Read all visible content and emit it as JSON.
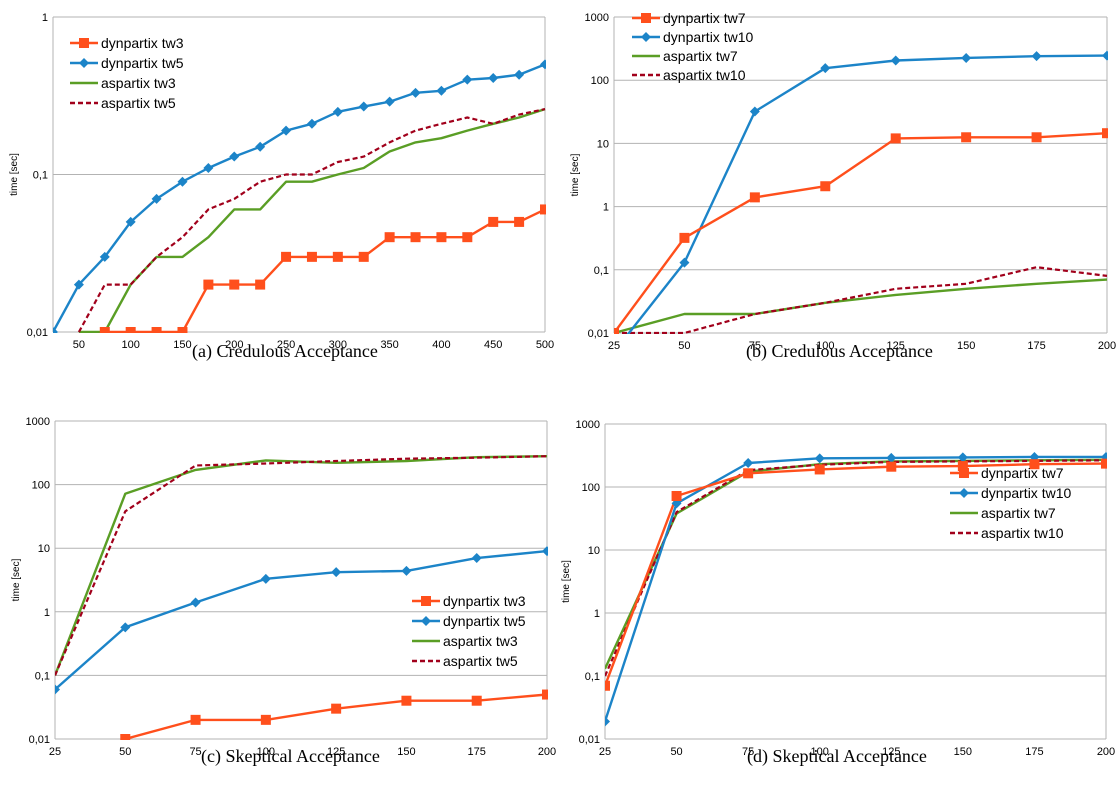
{
  "chart_data": [
    {
      "type": "line",
      "caption": "(a) Credulous Acceptance",
      "ylabel": "time [sec]",
      "yscale": "log",
      "ylim": [
        0.01,
        1
      ],
      "yticks": [
        0.01,
        0.1,
        1
      ],
      "ytick_labels": [
        "0,01",
        "0,1",
        "1"
      ],
      "xlim": [
        25,
        500
      ],
      "xticks": [
        50,
        100,
        150,
        200,
        250,
        300,
        350,
        400,
        450,
        500
      ],
      "xtick_labels": [
        "50",
        "100",
        "150",
        "200",
        "250",
        "300",
        "350",
        "400",
        "450",
        "500"
      ],
      "grid": "horizontal",
      "legend_position": "top-left",
      "series": [
        {
          "name": "dynpartix tw3",
          "marker": "square",
          "style": "solid",
          "color": "#ff4f1c",
          "x": [
            75,
            100,
            125,
            150,
            175,
            200,
            225,
            250,
            275,
            300,
            325,
            350,
            375,
            400,
            425,
            450,
            475,
            500
          ],
          "y": [
            0.01,
            0.01,
            0.01,
            0.01,
            0.02,
            0.02,
            0.02,
            0.03,
            0.03,
            0.03,
            0.03,
            0.04,
            0.04,
            0.04,
            0.04,
            0.05,
            0.05,
            0.06
          ]
        },
        {
          "name": "dynpartix tw5",
          "marker": "diamond",
          "style": "solid",
          "color": "#1c84c8",
          "x": [
            25,
            50,
            75,
            100,
            125,
            150,
            175,
            200,
            225,
            250,
            275,
            300,
            325,
            350,
            375,
            400,
            425,
            450,
            475,
            500
          ],
          "y": [
            0.01,
            0.02,
            0.03,
            0.05,
            0.07,
            0.09,
            0.11,
            0.13,
            0.15,
            0.19,
            0.21,
            0.25,
            0.27,
            0.29,
            0.33,
            0.34,
            0.4,
            0.41,
            0.43,
            0.5
          ]
        },
        {
          "name": "aspartix tw3",
          "marker": "none",
          "style": "solid",
          "color": "#5a9e25",
          "x": [
            50,
            75,
            100,
            125,
            150,
            175,
            200,
            225,
            250,
            275,
            300,
            325,
            350,
            375,
            400,
            425,
            450,
            475,
            500
          ],
          "y": [
            0.01,
            0.01,
            0.02,
            0.03,
            0.03,
            0.04,
            0.06,
            0.06,
            0.09,
            0.09,
            0.1,
            0.11,
            0.14,
            0.16,
            0.17,
            0.19,
            0.21,
            0.23,
            0.26
          ]
        },
        {
          "name": "aspartix tw5",
          "marker": "none",
          "style": "dashed",
          "color": "#a1001b",
          "x": [
            50,
            75,
            100,
            125,
            150,
            175,
            200,
            225,
            250,
            275,
            300,
            325,
            350,
            375,
            400,
            425,
            450,
            475,
            500
          ],
          "y": [
            0.01,
            0.02,
            0.02,
            0.03,
            0.04,
            0.06,
            0.07,
            0.09,
            0.1,
            0.1,
            0.12,
            0.13,
            0.16,
            0.19,
            0.21,
            0.23,
            0.21,
            0.24,
            0.26
          ]
        }
      ]
    },
    {
      "type": "line",
      "caption": "(b) Credulous Acceptance",
      "ylabel": "time [sec]",
      "yscale": "log",
      "ylim": [
        0.01,
        1000
      ],
      "yticks": [
        0.01,
        0.1,
        1,
        10,
        100,
        1000
      ],
      "ytick_labels": [
        "0,01",
        "0,1",
        "1",
        "10",
        "100",
        "1000"
      ],
      "xlim": [
        25,
        200
      ],
      "xticks": [
        25,
        50,
        75,
        100,
        125,
        150,
        175,
        200
      ],
      "xtick_labels": [
        "25",
        "50",
        "75",
        "100",
        "125",
        "150",
        "175",
        "200"
      ],
      "grid": "horizontal",
      "legend_position": "top-left",
      "series": [
        {
          "name": "dynpartix tw7",
          "marker": "square",
          "style": "solid",
          "color": "#ff4f1c",
          "x": [
            25,
            50,
            75,
            100,
            125,
            150,
            175,
            200
          ],
          "y": [
            0.01,
            0.32,
            1.4,
            2.1,
            12,
            12.5,
            12.5,
            14.5
          ]
        },
        {
          "name": "dynpartix tw10",
          "marker": "diamond",
          "style": "solid",
          "color": "#1c84c8",
          "x": [
            25,
            50,
            75,
            100,
            125,
            150,
            175,
            200
          ],
          "y": [
            0.005,
            0.13,
            32,
            155,
            205,
            225,
            240,
            245
          ]
        },
        {
          "name": "aspartix tw7",
          "marker": "none",
          "style": "solid",
          "color": "#5a9e25",
          "x": [
            25,
            50,
            75,
            100,
            125,
            150,
            175,
            200
          ],
          "y": [
            0.01,
            0.02,
            0.02,
            0.03,
            0.04,
            0.05,
            0.06,
            0.07
          ]
        },
        {
          "name": "aspartix tw10",
          "marker": "none",
          "style": "dashed",
          "color": "#a1001b",
          "x": [
            25,
            50,
            75,
            100,
            125,
            150,
            175,
            200
          ],
          "y": [
            0.01,
            0.01,
            0.02,
            0.03,
            0.05,
            0.06,
            0.11,
            0.08
          ]
        }
      ]
    },
    {
      "type": "line",
      "caption": "(c) Skeptical Acceptance",
      "ylabel": "time [sec]",
      "yscale": "log",
      "ylim": [
        0.01,
        1000
      ],
      "yticks": [
        0.01,
        0.1,
        1,
        10,
        100,
        1000
      ],
      "ytick_labels": [
        "0,01",
        "0,1",
        "1",
        "10",
        "100",
        "1000"
      ],
      "xlim": [
        25,
        200
      ],
      "xticks": [
        25,
        50,
        75,
        100,
        125,
        150,
        175,
        200
      ],
      "xtick_labels": [
        "25",
        "50",
        "75",
        "100",
        "125",
        "150",
        "175",
        "200"
      ],
      "grid": "horizontal",
      "legend_position": "center-right",
      "series": [
        {
          "name": "dynpartix tw3",
          "marker": "square",
          "style": "solid",
          "color": "#ff4f1c",
          "x": [
            50,
            75,
            100,
            125,
            150,
            175,
            200
          ],
          "y": [
            0.01,
            0.02,
            0.02,
            0.03,
            0.04,
            0.04,
            0.05
          ]
        },
        {
          "name": "dynpartix tw5",
          "marker": "diamond",
          "style": "solid",
          "color": "#1c84c8",
          "x": [
            25,
            50,
            75,
            100,
            125,
            150,
            175,
            200
          ],
          "y": [
            0.06,
            0.57,
            1.4,
            3.3,
            4.2,
            4.4,
            7,
            9
          ]
        },
        {
          "name": "aspartix tw3",
          "marker": "none",
          "style": "solid",
          "color": "#5a9e25",
          "x": [
            25,
            50,
            75,
            100,
            125,
            150,
            175,
            200
          ],
          "y": [
            0.1,
            72,
            170,
            240,
            220,
            235,
            270,
            280
          ]
        },
        {
          "name": "aspartix tw5",
          "marker": "none",
          "style": "dashed",
          "color": "#a1001b",
          "x": [
            25,
            50,
            75,
            100,
            125,
            150,
            175,
            200
          ],
          "y": [
            0.1,
            38,
            200,
            215,
            235,
            255,
            265,
            280
          ]
        }
      ]
    },
    {
      "type": "line",
      "caption": "(d) Skeptical Acceptance",
      "ylabel": "time [sec]",
      "yscale": "log",
      "ylim": [
        0.01,
        1000
      ],
      "yticks": [
        0.01,
        0.1,
        1,
        10,
        100,
        1000
      ],
      "ytick_labels": [
        "0,01",
        "0,1",
        "1",
        "10",
        "100",
        "1000"
      ],
      "xlim": [
        25,
        200
      ],
      "xticks": [
        25,
        50,
        75,
        100,
        125,
        150,
        175,
        200
      ],
      "xtick_labels": [
        "25",
        "50",
        "75",
        "100",
        "125",
        "150",
        "175",
        "200"
      ],
      "grid": "horizontal",
      "legend_position": "center-right",
      "series": [
        {
          "name": "dynpartix tw7",
          "marker": "square",
          "style": "solid",
          "color": "#ff4f1c",
          "x": [
            25,
            50,
            75,
            100,
            125,
            150,
            175,
            200
          ],
          "y": [
            0.07,
            72,
            165,
            190,
            210,
            215,
            230,
            235
          ]
        },
        {
          "name": "dynpartix tw10",
          "marker": "diamond",
          "style": "solid",
          "color": "#1c84c8",
          "x": [
            25,
            50,
            75,
            100,
            125,
            150,
            175,
            200
          ],
          "y": [
            0.019,
            55,
            240,
            285,
            290,
            295,
            300,
            300
          ]
        },
        {
          "name": "aspartix tw7",
          "marker": "none",
          "style": "solid",
          "color": "#5a9e25",
          "x": [
            25,
            50,
            75,
            100,
            125,
            150,
            175,
            200
          ],
          "y": [
            0.13,
            38,
            175,
            230,
            255,
            260,
            265,
            270
          ]
        },
        {
          "name": "aspartix tw10",
          "marker": "none",
          "style": "dashed",
          "color": "#a1001b",
          "x": [
            25,
            50,
            75,
            100,
            125,
            150,
            175,
            200
          ],
          "y": [
            0.1,
            40,
            185,
            225,
            250,
            255,
            260,
            265
          ]
        }
      ]
    }
  ]
}
